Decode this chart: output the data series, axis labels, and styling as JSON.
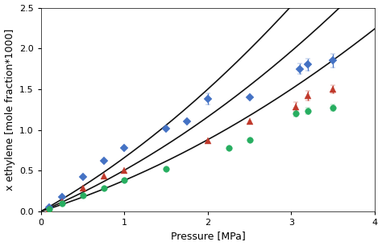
{
  "title": "",
  "xlabel": "Pressure [MPa]",
  "ylabel": "x ethylene [mole fraction*1000]",
  "xlim": [
    0,
    4
  ],
  "ylim": [
    0,
    2.5
  ],
  "xticks": [
    0,
    1,
    2,
    3,
    4
  ],
  "yticks": [
    0,
    0.5,
    1,
    1.5,
    2,
    2.5
  ],
  "blue_x": [
    0.1,
    0.25,
    0.5,
    0.75,
    1.0,
    1.5,
    1.75,
    2.0,
    2.5,
    3.1,
    3.2,
    3.5
  ],
  "blue_y": [
    0.05,
    0.18,
    0.42,
    0.62,
    0.78,
    1.02,
    1.1,
    1.38,
    1.4,
    1.75,
    1.8,
    1.85
  ],
  "blue_yerr": [
    0,
    0,
    0,
    0,
    0,
    0,
    0,
    0.07,
    0,
    0.06,
    0.07,
    0.08
  ],
  "red_x": [
    0.1,
    0.25,
    0.5,
    0.75,
    1.0,
    2.0,
    2.5,
    3.05,
    3.2,
    3.5
  ],
  "red_y": [
    0.03,
    0.12,
    0.28,
    0.43,
    0.5,
    0.87,
    1.1,
    1.28,
    1.42,
    1.5
  ],
  "red_yerr": [
    0,
    0,
    0,
    0,
    0,
    0,
    0,
    0.06,
    0.06,
    0.05
  ],
  "green_x": [
    0.1,
    0.25,
    0.5,
    0.75,
    1.0,
    1.5,
    2.25,
    2.5,
    3.05,
    3.2,
    3.5
  ],
  "green_y": [
    0.03,
    0.1,
    0.2,
    0.28,
    0.38,
    0.52,
    0.78,
    0.88,
    1.2,
    1.23,
    1.27
  ],
  "green_yerr": [
    0,
    0,
    0,
    0,
    0,
    0,
    0,
    0,
    0.04,
    0.04,
    0.04
  ],
  "blue_color": "#4472C4",
  "red_color": "#C0392B",
  "green_color": "#27AE60",
  "curve_color": "#111111",
  "bg_color": "#FFFFFF",
  "figsize": [
    4.74,
    3.06
  ],
  "dpi": 100,
  "blue_curve_k": 0.625,
  "blue_curve_a": 1.05,
  "red_curve_k": 0.495,
  "red_curve_a": 1.05,
  "green_curve_k": 0.38,
  "green_curve_a": 1.07
}
